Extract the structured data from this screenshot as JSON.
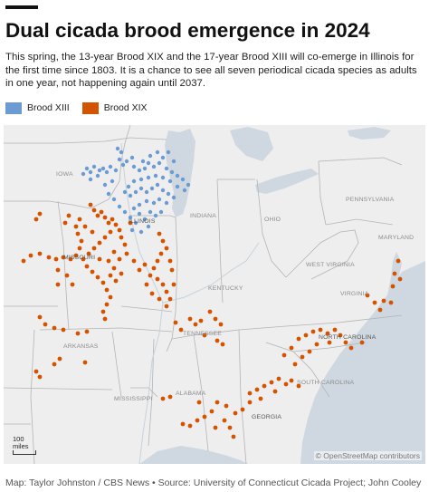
{
  "title": "Dual cicada brood emergence in 2024",
  "subtitle": "This spring, the 13-year Brood XIX and the 17-year Brood XIII will co-emerge in Illinois for the first time since 1803. It is a chance to see all seven periodical cicada species as adults in one year, not happening again until 2037.",
  "legend": [
    {
      "label": "Brood XIII",
      "color": "#6b9bd2"
    },
    {
      "label": "Brood XIX",
      "color": "#d35400"
    }
  ],
  "map": {
    "state_labels": {
      "iowa": "IOWA",
      "illinois": "ILLINOIS",
      "indiana": "INDIANA",
      "ohio": "OHIO",
      "pennsylvania": "PENNSYLVANIA",
      "missouri": "MISSOURI",
      "kentucky": "KENTUCKY",
      "west_virginia": "WEST VIRGINIA",
      "virginia": "VIRGINIA",
      "maryland": "MARYLAND",
      "tennessee": "TENNESSEE",
      "north_carolina": "NORTH CAROLINA",
      "arkansas": "ARKANSAS",
      "south_carolina": "SOUTH CAROLINA",
      "mississippi": "MISSISSIPPI",
      "alabama": "ALABAMA",
      "georgia": "GEORGIA"
    },
    "scale_label": "100\nmiles",
    "credit": "© OpenStreetMap contributors"
  },
  "footer": "Map: Taylor Johnston / CBS News • Source: University of Connecticut Cicada Project; John Cooley"
}
